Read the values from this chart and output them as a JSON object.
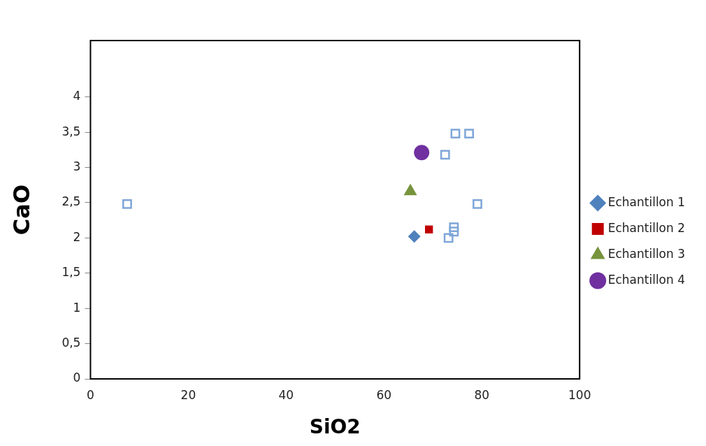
{
  "chart_data": {
    "type": "scatter",
    "xlabel": "SiO2",
    "ylabel": "CaO",
    "xlim": [
      0,
      100
    ],
    "xticks": [
      0,
      20,
      40,
      60,
      80,
      100
    ],
    "ylim": [
      0,
      4.8
    ],
    "yticks": [
      0,
      {
        "value": 0.5,
        "label": "0,5"
      },
      1,
      {
        "value": 1.5,
        "label": "1,5"
      },
      2,
      {
        "value": 2.5,
        "label": "2,5"
      },
      3,
      {
        "value": 3.5,
        "label": "3,5"
      },
      4
    ],
    "grid": false,
    "legend": "right",
    "series": [
      {
        "color": "#7ea6d8",
        "marker": "square_open",
        "x": [
          7.5,
          72.5,
          74.6,
          77.4,
          79.1,
          74.3,
          74.3,
          73.2
        ],
        "values": [
          2.48,
          3.18,
          3.48,
          3.48,
          2.48,
          2.15,
          2.09,
          2.0
        ]
      },
      {
        "name": "Echantillon 1",
        "color": "#4f81bd",
        "marker": "diamond",
        "x": [
          66.2
        ],
        "values": [
          2.02
        ]
      },
      {
        "name": "Echantillon 2",
        "color": "#c00000",
        "marker": "square",
        "x": [
          69.2
        ],
        "values": [
          2.12
        ]
      },
      {
        "name": "Echantillon 3",
        "color": "#77933c",
        "marker": "triangle",
        "x": [
          65.4
        ],
        "values": [
          2.66
        ]
      },
      {
        "name": "Echantillon 4",
        "color": "#7030a0",
        "marker": "circle",
        "x": [
          67.7
        ],
        "values": [
          3.21
        ]
      }
    ]
  }
}
